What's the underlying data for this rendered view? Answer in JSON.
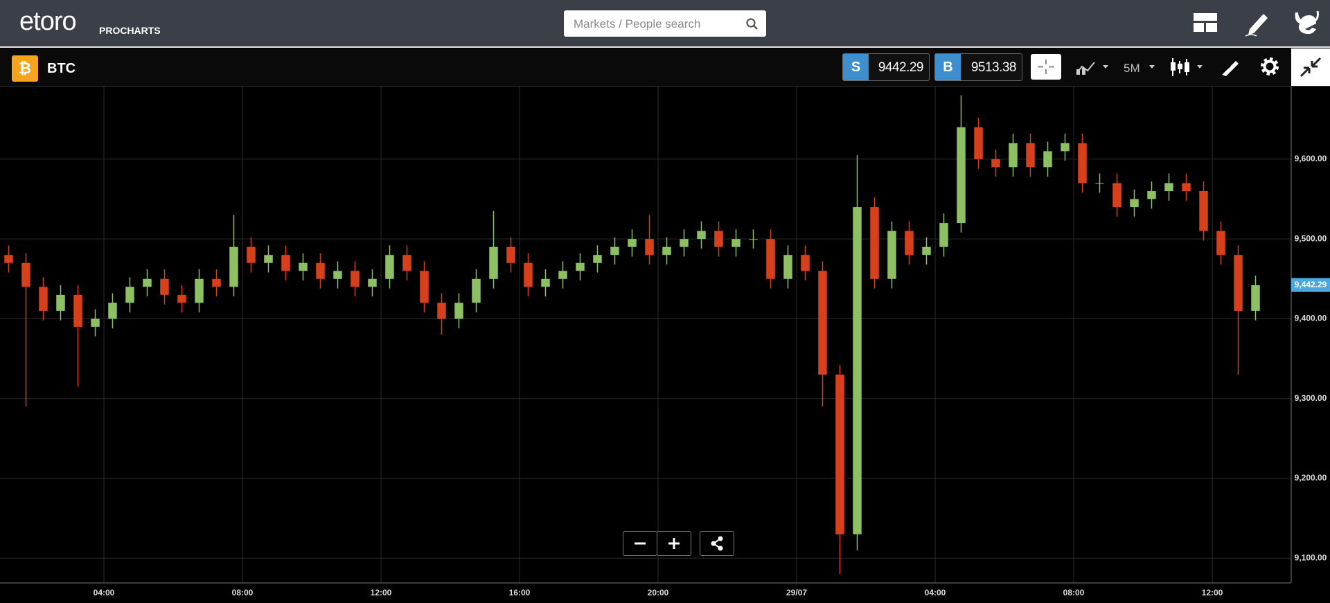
{
  "header": {
    "logo": "etoro",
    "product": "PROCHARTS",
    "search_placeholder": "Markets / People search"
  },
  "toolbar": {
    "instrument": "BTC",
    "sell_label": "S",
    "sell_price": 9442.29,
    "buy_label": "B",
    "buy_price": 9513.38,
    "timeframe": "5M"
  },
  "chart_data": {
    "type": "candlestick",
    "up_color": "#8cc063",
    "down_color": "#d8401c",
    "grid": true,
    "xlim": [
      0,
      37.28
    ],
    "ylim": [
      9069,
      9691
    ],
    "xticks": [
      {
        "value": 3,
        "label": "04:00"
      },
      {
        "value": 7,
        "label": "08:00"
      },
      {
        "value": 11,
        "label": "12:00"
      },
      {
        "value": 15,
        "label": "16:00"
      },
      {
        "value": 19,
        "label": "20:00"
      },
      {
        "value": 23,
        "label": "29/07"
      },
      {
        "value": 27,
        "label": "04:00"
      },
      {
        "value": 31,
        "label": "08:00"
      },
      {
        "value": 35,
        "label": "12:00"
      }
    ],
    "yticks": [
      {
        "value": 9100,
        "label": "9,100.00"
      },
      {
        "value": 9200,
        "label": "9,200.00"
      },
      {
        "value": 9300,
        "label": "9,300.00"
      },
      {
        "value": 9400,
        "label": "9,400.00"
      },
      {
        "value": 9500,
        "label": "9,500.00"
      },
      {
        "value": 9600,
        "label": "9,600.00"
      }
    ],
    "price_marker": {
      "value": 9442.29,
      "label": "9,442.29",
      "color": "#4aa8e0"
    },
    "x": [
      0.25,
      0.75,
      1.25,
      1.75,
      2.25,
      2.75,
      3.25,
      3.75,
      4.25,
      4.75,
      5.25,
      5.75,
      6.25,
      6.75,
      7.25,
      7.75,
      8.25,
      8.75,
      9.25,
      9.75,
      10.25,
      10.75,
      11.25,
      11.75,
      12.25,
      12.75,
      13.25,
      13.75,
      14.25,
      14.75,
      15.25,
      15.75,
      16.25,
      16.75,
      17.25,
      17.75,
      18.25,
      18.75,
      19.25,
      19.75,
      20.25,
      20.75,
      21.25,
      21.75,
      22.25,
      22.75,
      23.25,
      23.75,
      24.25,
      24.75,
      25.25,
      25.75,
      26.25,
      26.75,
      27.25,
      27.75,
      28.25,
      28.75,
      29.25,
      29.75,
      30.25,
      30.75,
      31.25,
      31.75,
      32.25,
      32.75,
      33.25,
      33.75,
      34.25,
      34.75,
      35.25,
      35.75,
      36.25
    ],
    "open": [
      9480,
      9470,
      9440,
      9410,
      9430,
      9390,
      9400,
      9420,
      9440,
      9450,
      9430,
      9420,
      9450,
      9440,
      9490,
      9470,
      9480,
      9460,
      9470,
      9450,
      9460,
      9440,
      9450,
      9480,
      9460,
      9420,
      9400,
      9420,
      9450,
      9490,
      9470,
      9440,
      9450,
      9460,
      9470,
      9480,
      9490,
      9500,
      9480,
      9490,
      9500,
      9510,
      9490,
      9500,
      9500,
      9450,
      9480,
      9460,
      9330,
      9130,
      9540,
      9450,
      9510,
      9480,
      9490,
      9520,
      9640,
      9600,
      9590,
      9620,
      9590,
      9610,
      9620,
      9570,
      9570,
      9540,
      9550,
      9560,
      9570,
      9560,
      9510,
      9480,
      9410
    ],
    "high": [
      9492,
      9482,
      9452,
      9442,
      9442,
      9412,
      9432,
      9452,
      9462,
      9462,
      9442,
      9462,
      9462,
      9530,
      9502,
      9492,
      9492,
      9482,
      9482,
      9472,
      9472,
      9462,
      9492,
      9492,
      9472,
      9432,
      9432,
      9462,
      9535,
      9502,
      9482,
      9462,
      9472,
      9482,
      9492,
      9502,
      9512,
      9530,
      9502,
      9512,
      9522,
      9522,
      9512,
      9512,
      9512,
      9492,
      9492,
      9472,
      9342,
      9605,
      9552,
      9522,
      9522,
      9502,
      9532,
      9680,
      9652,
      9612,
      9632,
      9632,
      9622,
      9632,
      9632,
      9582,
      9582,
      9562,
      9572,
      9582,
      9582,
      9572,
      9522,
      9492,
      9454
    ],
    "low": [
      9458,
      9290,
      9398,
      9398,
      9315,
      9378,
      9388,
      9408,
      9428,
      9418,
      9408,
      9408,
      9428,
      9428,
      9458,
      9458,
      9448,
      9448,
      9438,
      9438,
      9428,
      9428,
      9438,
      9448,
      9408,
      9380,
      9388,
      9408,
      9438,
      9458,
      9428,
      9428,
      9438,
      9448,
      9458,
      9468,
      9478,
      9468,
      9468,
      9478,
      9488,
      9478,
      9478,
      9488,
      9438,
      9438,
      9448,
      9290,
      9080,
      9110,
      9438,
      9438,
      9468,
      9468,
      9478,
      9508,
      9588,
      9578,
      9578,
      9578,
      9578,
      9598,
      9558,
      9558,
      9528,
      9528,
      9538,
      9548,
      9548,
      9498,
      9468,
      9330,
      9398
    ],
    "close": [
      9470,
      9440,
      9410,
      9430,
      9390,
      9400,
      9420,
      9440,
      9450,
      9430,
      9420,
      9450,
      9440,
      9490,
      9470,
      9480,
      9460,
      9470,
      9450,
      9460,
      9440,
      9450,
      9480,
      9460,
      9420,
      9400,
      9420,
      9450,
      9490,
      9470,
      9440,
      9450,
      9460,
      9470,
      9480,
      9490,
      9500,
      9480,
      9490,
      9500,
      9510,
      9490,
      9500,
      9500,
      9450,
      9480,
      9460,
      9330,
      9130,
      9540,
      9450,
      9510,
      9480,
      9490,
      9520,
      9640,
      9600,
      9590,
      9620,
      9590,
      9610,
      9620,
      9570,
      9570,
      9540,
      9550,
      9560,
      9570,
      9560,
      9510,
      9480,
      9410,
      9442
    ]
  }
}
